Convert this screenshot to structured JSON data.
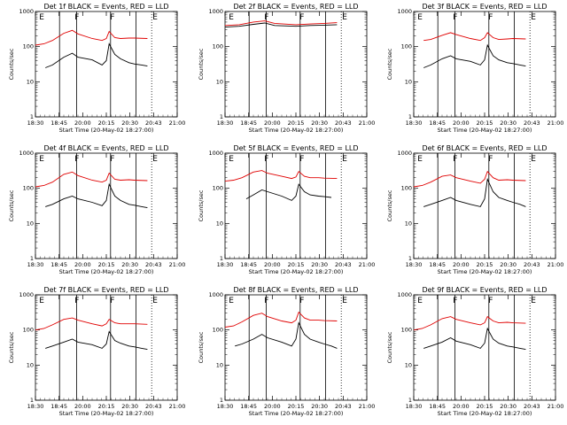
{
  "x_tick_labels": [
    "18:30",
    "18:45",
    "20:00",
    "20:15",
    "20:30",
    "20:43",
    "21:00"
  ],
  "y_tick_labels": [
    "1",
    "10",
    "100",
    "1000"
  ],
  "ylabel": "Counts/sec",
  "xlabel": "Start Time (20-May-02 18:27:00)",
  "colors": {
    "events": "#000000",
    "lld": "#e00000"
  },
  "chart_data": [
    {
      "type": "line",
      "title": "Det 1f BLACK = Events, RED = LLD",
      "markers": [
        "E",
        "F",
        "F",
        "E"
      ],
      "yscale": "log",
      "ylim": [
        1,
        1000
      ],
      "series": [
        {
          "color": "black",
          "x": [
            0.07,
            0.12,
            0.2,
            0.26,
            0.3,
            0.4,
            0.47,
            0.5,
            0.52,
            0.56,
            0.6,
            0.66,
            0.7,
            0.75,
            0.79
          ],
          "values": [
            25,
            30,
            50,
            65,
            50,
            42,
            30,
            40,
            120,
            60,
            45,
            35,
            32,
            30,
            28
          ]
        },
        {
          "color": "red",
          "x": [
            0.0,
            0.06,
            0.12,
            0.2,
            0.26,
            0.3,
            0.4,
            0.47,
            0.5,
            0.52,
            0.56,
            0.6,
            0.66,
            0.7,
            0.79
          ],
          "values": [
            110,
            120,
            150,
            240,
            290,
            230,
            170,
            150,
            170,
            270,
            180,
            170,
            175,
            175,
            170
          ]
        }
      ]
    },
    {
      "type": "line",
      "title": "Det 2f BLACK = Events, RED = LLD",
      "markers": [
        "E",
        "F",
        "F",
        "E"
      ],
      "yscale": "log",
      "ylim": [
        1,
        1000
      ],
      "series": [
        {
          "color": "black",
          "x": [
            0.0,
            0.1,
            0.2,
            0.28,
            0.35,
            0.5,
            0.6,
            0.7,
            0.79
          ],
          "values": [
            360,
            380,
            430,
            470,
            400,
            380,
            400,
            410,
            420
          ]
        },
        {
          "color": "red",
          "x": [
            0.0,
            0.1,
            0.2,
            0.28,
            0.35,
            0.5,
            0.6,
            0.7,
            0.79
          ],
          "values": [
            400,
            420,
            500,
            540,
            460,
            420,
            440,
            460,
            480
          ]
        }
      ]
    },
    {
      "type": "line",
      "title": "Det 3f BLACK = Events, RED = LLD",
      "markers": [
        "E",
        "F",
        "F",
        "E"
      ],
      "yscale": "log",
      "ylim": [
        1,
        1000
      ],
      "series": [
        {
          "color": "black",
          "x": [
            0.07,
            0.12,
            0.2,
            0.26,
            0.3,
            0.4,
            0.47,
            0.5,
            0.52,
            0.56,
            0.6,
            0.66,
            0.7,
            0.75,
            0.79
          ],
          "values": [
            25,
            30,
            45,
            55,
            45,
            38,
            30,
            42,
            110,
            55,
            42,
            35,
            33,
            30,
            28
          ]
        },
        {
          "color": "red",
          "x": [
            0.07,
            0.12,
            0.2,
            0.26,
            0.3,
            0.4,
            0.47,
            0.5,
            0.52,
            0.56,
            0.6,
            0.66,
            0.7,
            0.79
          ],
          "values": [
            150,
            160,
            210,
            250,
            220,
            170,
            150,
            180,
            250,
            180,
            160,
            165,
            170,
            165
          ]
        }
      ]
    },
    {
      "type": "line",
      "title": "Det 4f BLACK = Events, RED = LLD",
      "markers": [
        "E",
        "F",
        "F",
        "E"
      ],
      "yscale": "log",
      "ylim": [
        1,
        1000
      ],
      "series": [
        {
          "color": "black",
          "x": [
            0.07,
            0.12,
            0.2,
            0.26,
            0.3,
            0.4,
            0.47,
            0.5,
            0.52,
            0.56,
            0.6,
            0.66,
            0.7,
            0.75,
            0.79
          ],
          "values": [
            30,
            35,
            50,
            60,
            50,
            40,
            32,
            45,
            130,
            60,
            45,
            35,
            33,
            30,
            28
          ]
        },
        {
          "color": "red",
          "x": [
            0.0,
            0.06,
            0.12,
            0.2,
            0.26,
            0.3,
            0.4,
            0.47,
            0.5,
            0.52,
            0.56,
            0.6,
            0.66,
            0.7,
            0.79
          ],
          "values": [
            110,
            120,
            150,
            250,
            290,
            230,
            170,
            150,
            170,
            270,
            180,
            170,
            175,
            170,
            165
          ]
        }
      ]
    },
    {
      "type": "line",
      "title": "Det 5f BLACK = Events, RED = LLD",
      "markers": [
        "E",
        "F",
        "F",
        "E"
      ],
      "yscale": "log",
      "ylim": [
        1,
        1000
      ],
      "series": [
        {
          "color": "black",
          "x": [
            0.15,
            0.2,
            0.26,
            0.3,
            0.4,
            0.47,
            0.5,
            0.52,
            0.56,
            0.6,
            0.66,
            0.7,
            0.75
          ],
          "values": [
            50,
            65,
            90,
            80,
            60,
            45,
            60,
            130,
            80,
            65,
            60,
            58,
            55
          ]
        },
        {
          "color": "red",
          "x": [
            0.0,
            0.06,
            0.12,
            0.2,
            0.26,
            0.3,
            0.4,
            0.47,
            0.5,
            0.52,
            0.56,
            0.6,
            0.66,
            0.7,
            0.79
          ],
          "values": [
            160,
            170,
            200,
            290,
            320,
            270,
            220,
            190,
            210,
            300,
            220,
            200,
            200,
            195,
            190
          ]
        }
      ]
    },
    {
      "type": "line",
      "title": "Det 6f BLACK = Events, RED = LLD",
      "markers": [
        "E",
        "F",
        "F",
        "E"
      ],
      "yscale": "log",
      "ylim": [
        1,
        1000
      ],
      "series": [
        {
          "color": "black",
          "x": [
            0.07,
            0.12,
            0.2,
            0.26,
            0.3,
            0.4,
            0.47,
            0.5,
            0.52,
            0.56,
            0.6,
            0.66,
            0.7,
            0.75,
            0.79
          ],
          "values": [
            30,
            35,
            45,
            55,
            45,
            35,
            30,
            50,
            180,
            80,
            55,
            45,
            40,
            35,
            30
          ]
        },
        {
          "color": "red",
          "x": [
            0.0,
            0.06,
            0.12,
            0.2,
            0.26,
            0.3,
            0.4,
            0.47,
            0.5,
            0.52,
            0.56,
            0.6,
            0.66,
            0.7,
            0.79
          ],
          "values": [
            110,
            120,
            150,
            220,
            240,
            200,
            160,
            140,
            180,
            300,
            200,
            170,
            175,
            170,
            165
          ]
        }
      ]
    },
    {
      "type": "line",
      "title": "Det 7f BLACK = Events, RED = LLD",
      "markers": [
        "E",
        "F",
        "F",
        "E"
      ],
      "yscale": "log",
      "ylim": [
        1,
        1000
      ],
      "series": [
        {
          "color": "black",
          "x": [
            0.07,
            0.12,
            0.2,
            0.26,
            0.3,
            0.4,
            0.47,
            0.5,
            0.52,
            0.56,
            0.6,
            0.66,
            0.7,
            0.75,
            0.79
          ],
          "values": [
            30,
            35,
            45,
            55,
            45,
            38,
            30,
            40,
            90,
            50,
            42,
            35,
            33,
            30,
            28
          ]
        },
        {
          "color": "red",
          "x": [
            0.0,
            0.06,
            0.12,
            0.2,
            0.26,
            0.3,
            0.4,
            0.47,
            0.5,
            0.52,
            0.56,
            0.6,
            0.66,
            0.7,
            0.79
          ],
          "values": [
            100,
            110,
            140,
            200,
            220,
            190,
            150,
            130,
            150,
            200,
            160,
            150,
            150,
            150,
            145
          ]
        }
      ]
    },
    {
      "type": "line",
      "title": "Det 8f BLACK = Events, RED = LLD",
      "markers": [
        "E",
        "F",
        "F",
        "E"
      ],
      "yscale": "log",
      "ylim": [
        1,
        1000
      ],
      "series": [
        {
          "color": "black",
          "x": [
            0.07,
            0.12,
            0.2,
            0.26,
            0.3,
            0.4,
            0.47,
            0.5,
            0.52,
            0.56,
            0.6,
            0.66,
            0.7,
            0.75,
            0.79
          ],
          "values": [
            35,
            40,
            55,
            75,
            60,
            45,
            35,
            55,
            160,
            75,
            55,
            45,
            40,
            35,
            30
          ]
        },
        {
          "color": "red",
          "x": [
            0.0,
            0.06,
            0.12,
            0.2,
            0.26,
            0.3,
            0.4,
            0.47,
            0.5,
            0.52,
            0.56,
            0.6,
            0.66,
            0.7,
            0.79
          ],
          "values": [
            120,
            130,
            170,
            260,
            300,
            240,
            180,
            160,
            190,
            320,
            220,
            190,
            190,
            185,
            180
          ]
        }
      ]
    },
    {
      "type": "line",
      "title": "Det 9f BLACK = Events, RED = LLD",
      "markers": [
        "E",
        "F",
        "F",
        "E"
      ],
      "yscale": "log",
      "ylim": [
        1,
        1000
      ],
      "series": [
        {
          "color": "black",
          "x": [
            0.07,
            0.12,
            0.2,
            0.26,
            0.3,
            0.4,
            0.47,
            0.5,
            0.52,
            0.56,
            0.6,
            0.66,
            0.7,
            0.75,
            0.79
          ],
          "values": [
            30,
            35,
            45,
            60,
            48,
            38,
            30,
            42,
            110,
            55,
            42,
            35,
            33,
            30,
            28
          ]
        },
        {
          "color": "red",
          "x": [
            0.0,
            0.06,
            0.12,
            0.2,
            0.26,
            0.3,
            0.4,
            0.47,
            0.5,
            0.52,
            0.56,
            0.6,
            0.66,
            0.7,
            0.79
          ],
          "values": [
            100,
            110,
            140,
            210,
            240,
            200,
            160,
            140,
            160,
            240,
            180,
            160,
            165,
            160,
            155
          ]
        }
      ]
    }
  ]
}
